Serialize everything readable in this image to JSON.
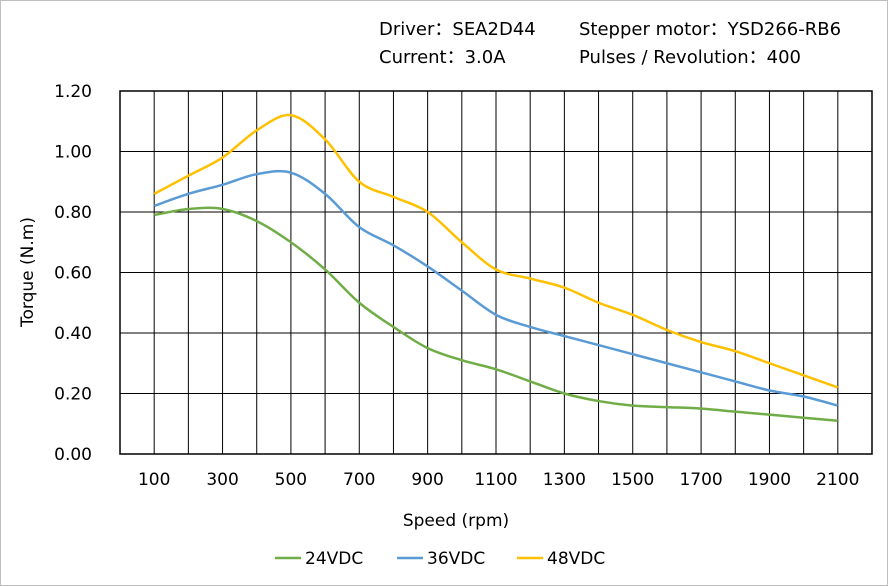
{
  "header": {
    "driver": "Driver：SEA2D44",
    "motor": "Stepper  motor：YSD266-RB6",
    "current": "Current：3.0A",
    "pulses": "Pulses / Revolution：400"
  },
  "chart_data": {
    "type": "line",
    "title": "",
    "xlabel": "Speed  (rpm)",
    "ylabel": "Torque (N.m)",
    "xlim": [
      0,
      2200
    ],
    "ylim": [
      0,
      1.2
    ],
    "grid": true,
    "legend_position": "bottom",
    "x": [
      100,
      200,
      300,
      400,
      500,
      600,
      700,
      800,
      900,
      1000,
      1100,
      1200,
      1300,
      1400,
      1500,
      1600,
      1700,
      1800,
      1900,
      2000,
      2100
    ],
    "x_tick_labels": [
      "100",
      "300",
      "500",
      "700",
      "900",
      "1100",
      "1300",
      "1500",
      "1700",
      "1900",
      "2100"
    ],
    "y_tick_labels": [
      "0.00",
      "0.20",
      "0.40",
      "0.60",
      "0.80",
      "1.00",
      "1.20"
    ],
    "series": [
      {
        "name": "24VDC",
        "color": "#70ad47",
        "values": [
          0.79,
          0.81,
          0.81,
          0.77,
          0.7,
          0.61,
          0.5,
          0.42,
          0.35,
          0.31,
          0.28,
          0.24,
          0.2,
          0.175,
          0.16,
          0.155,
          0.15,
          0.14,
          0.13,
          0.12,
          0.11
        ]
      },
      {
        "name": "36VDC",
        "color": "#5b9bd5",
        "values": [
          0.82,
          0.86,
          0.89,
          0.925,
          0.93,
          0.86,
          0.75,
          0.69,
          0.62,
          0.54,
          0.46,
          0.42,
          0.39,
          0.36,
          0.33,
          0.3,
          0.27,
          0.24,
          0.21,
          0.19,
          0.16
        ]
      },
      {
        "name": "48VDC",
        "color": "#ffc000",
        "values": [
          0.86,
          0.92,
          0.98,
          1.07,
          1.12,
          1.04,
          0.9,
          0.85,
          0.8,
          0.7,
          0.61,
          0.58,
          0.55,
          0.5,
          0.46,
          0.41,
          0.37,
          0.34,
          0.3,
          0.26,
          0.22
        ]
      }
    ]
  }
}
